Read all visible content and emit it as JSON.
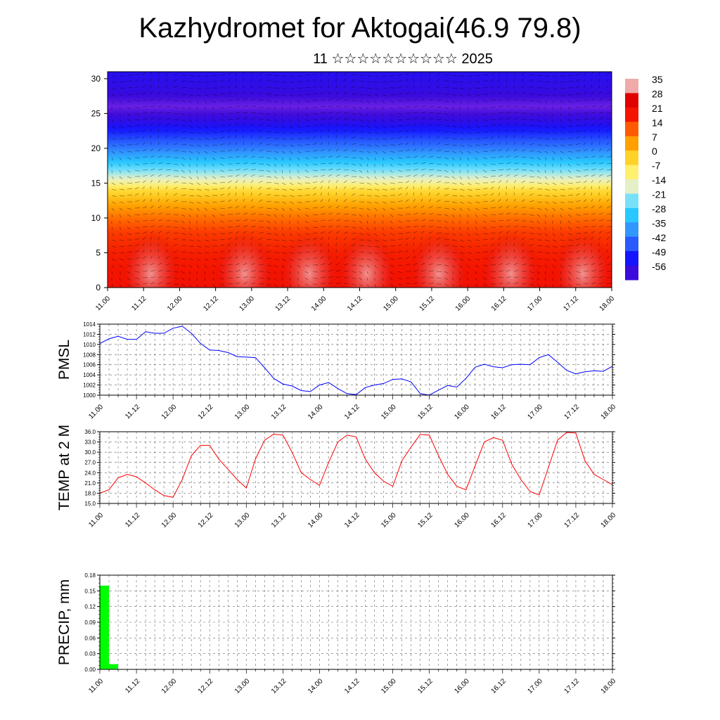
{
  "title": "Kazhydromet for Aktogai(46.9 79.8)",
  "subtitle": "11 ☆☆☆☆☆☆☆☆☆☆ 2025",
  "time_labels": [
    "11.00",
    "11.12",
    "12.00",
    "12.12",
    "13.00",
    "13.12",
    "14.00",
    "14.12",
    "15.00",
    "15.12",
    "16.00",
    "16.12",
    "17.00",
    "17.12",
    "18.00"
  ],
  "chart_data": [
    {
      "type": "heatmap",
      "name": "cross-section",
      "x_range_days": [
        11,
        18
      ],
      "ylim": [
        0,
        31
      ],
      "yticks": [
        0,
        5,
        10,
        15,
        20,
        25,
        30
      ],
      "colorbar_labels": [
        "35",
        "28",
        "21",
        "14",
        "7",
        "0",
        "-7",
        "-14",
        "-21",
        "-28",
        "-35",
        "-42",
        "-49",
        "-56"
      ],
      "level_profile": [
        {
          "level": 0,
          "value": 22
        },
        {
          "level": 5,
          "value": 20
        },
        {
          "level": 8,
          "value": 17
        },
        {
          "level": 10,
          "value": 12
        },
        {
          "level": 12,
          "value": 6
        },
        {
          "level": 14,
          "value": -2
        },
        {
          "level": 15,
          "value": -10
        },
        {
          "level": 16,
          "value": -16
        },
        {
          "level": 18,
          "value": -28
        },
        {
          "level": 20,
          "value": -38
        },
        {
          "level": 22,
          "value": -46
        },
        {
          "level": 24,
          "value": -54
        },
        {
          "level": 26,
          "value": -59
        },
        {
          "level": 28,
          "value": -55
        },
        {
          "level": 31,
          "value": -52
        }
      ],
      "warm_spots_day": [
        11.6,
        12.9,
        13.8,
        14.6,
        15.6,
        16.6,
        17.6
      ]
    },
    {
      "type": "line",
      "ylabel": "PMSL",
      "color": "#0000ff",
      "ylim": [
        1000,
        1014
      ],
      "yticks": [
        "1000",
        "1002",
        "1004",
        "1006",
        "1008",
        "1010",
        "1012",
        "1014"
      ],
      "x_days": [
        11.0,
        11.125,
        11.25,
        11.375,
        11.5,
        11.625,
        11.75,
        11.875,
        12.0,
        12.125,
        12.25,
        12.375,
        12.5,
        12.625,
        12.75,
        12.875,
        13.0,
        13.125,
        13.25,
        13.375,
        13.5,
        13.625,
        13.75,
        13.875,
        14.0,
        14.125,
        14.25,
        14.375,
        14.5,
        14.625,
        14.75,
        14.875,
        15.0,
        15.125,
        15.25,
        15.375,
        15.5,
        15.625,
        15.75,
        15.875,
        16.0,
        16.125,
        16.25,
        16.375,
        16.5,
        16.625,
        16.75,
        16.875,
        17.0,
        17.125,
        17.25,
        17.375,
        17.5,
        17.625,
        17.75,
        17.875,
        18.0
      ],
      "values": [
        1010.2,
        1011.1,
        1011.6,
        1011.0,
        1011.0,
        1012.5,
        1012.2,
        1012.2,
        1013.2,
        1013.6,
        1012.2,
        1010.2,
        1008.9,
        1008.8,
        1008.4,
        1007.6,
        1007.5,
        1007.4,
        1005.4,
        1003.3,
        1002.2,
        1001.8,
        1000.9,
        1000.7,
        1002.0,
        1002.5,
        1001.3,
        1000.3,
        1000.1,
        1001.5,
        1002.0,
        1002.3,
        1003.1,
        1003.2,
        1002.6,
        1000.3,
        1000.0,
        1001.0,
        1001.9,
        1001.6,
        1003.3,
        1005.5,
        1006.1,
        1005.6,
        1005.4,
        1006.0,
        1006.1,
        1006.0,
        1007.4,
        1008.0,
        1006.5,
        1004.9,
        1004.2,
        1004.6,
        1004.8,
        1004.7,
        1005.7
      ]
    },
    {
      "type": "line",
      "ylabel": "TEMP at 2 M",
      "color": "#ff0000",
      "ylim": [
        15,
        36
      ],
      "yticks": [
        "15.0",
        "18.0",
        "21.0",
        "24.0",
        "27.0",
        "30.0",
        "33.0",
        "36.0"
      ],
      "x_days": [
        11.0,
        11.125,
        11.25,
        11.375,
        11.5,
        11.625,
        11.75,
        11.875,
        12.0,
        12.125,
        12.25,
        12.375,
        12.5,
        12.625,
        12.75,
        12.875,
        13.0,
        13.125,
        13.25,
        13.375,
        13.5,
        13.625,
        13.75,
        13.875,
        14.0,
        14.125,
        14.25,
        14.375,
        14.5,
        14.625,
        14.75,
        14.875,
        15.0,
        15.125,
        15.25,
        15.375,
        15.5,
        15.625,
        15.75,
        15.875,
        16.0,
        16.125,
        16.25,
        16.375,
        16.5,
        16.625,
        16.75,
        16.875,
        17.0,
        17.125,
        17.25,
        17.375,
        17.5,
        17.625,
        17.75,
        17.875,
        18.0
      ],
      "values": [
        18.0,
        19.0,
        22.5,
        23.5,
        22.8,
        21.0,
        19.0,
        17.3,
        16.8,
        22.0,
        29.0,
        32.0,
        32.0,
        28.0,
        25.0,
        22.0,
        19.5,
        28.0,
        33.5,
        35.3,
        35.0,
        30.0,
        24.0,
        22.0,
        20.3,
        27.0,
        33.0,
        35.0,
        34.5,
        28.0,
        24.0,
        21.5,
        20.0,
        27.5,
        31.5,
        35.2,
        35.0,
        29.0,
        23.5,
        20.0,
        19.0,
        26.0,
        33.0,
        34.3,
        33.5,
        26.5,
        22.0,
        18.5,
        17.5,
        25.5,
        33.5,
        35.8,
        35.6,
        27.5,
        23.5,
        22.0,
        20.5
      ]
    },
    {
      "type": "bar",
      "ylabel": "PRECIP, mm",
      "color": "#00ff00",
      "ylim": [
        0,
        0.18
      ],
      "yticks": [
        "0.00",
        "0.03",
        "0.06",
        "0.09",
        "0.12",
        "0.15",
        "0.18"
      ],
      "bars": [
        {
          "x_start": 11.0,
          "x_end": 11.125,
          "value": 0.16
        },
        {
          "x_start": 11.125,
          "x_end": 11.25,
          "value": 0.01
        }
      ]
    }
  ]
}
